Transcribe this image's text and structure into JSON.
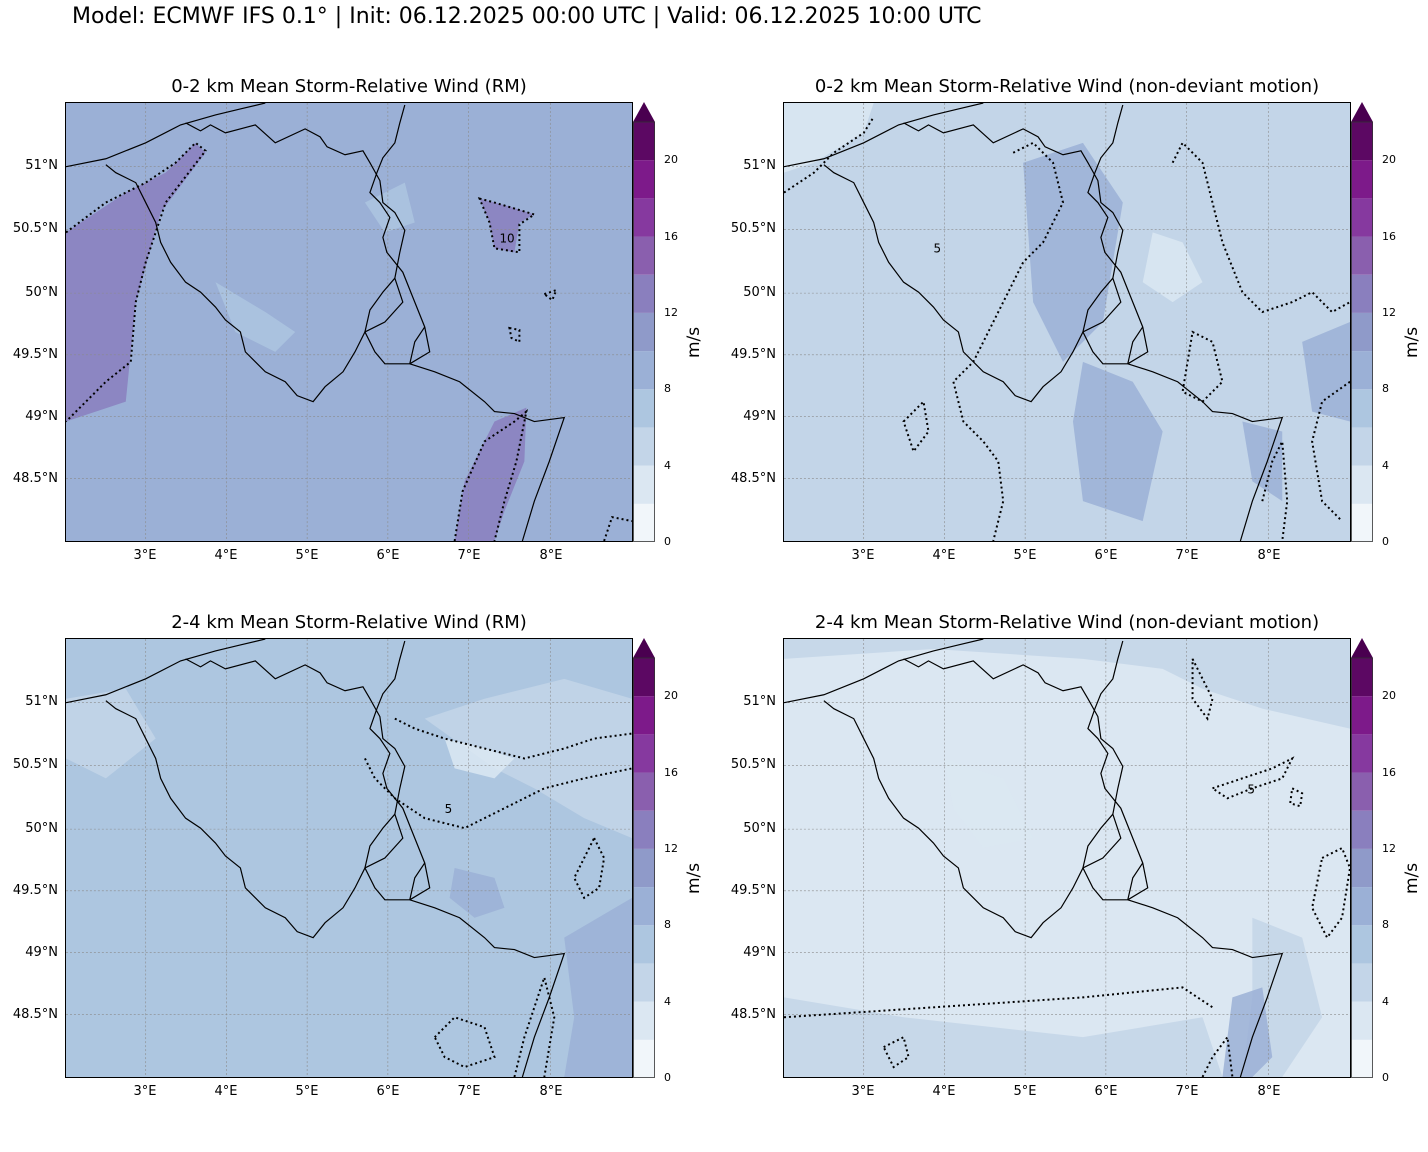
{
  "suptitle": "Model: ECMWF IFS 0.1° | Init: 06.12.2025 00:00 UTC | Valid: 06.12.2025 10:00 UTC",
  "panels": [
    {
      "title": "0-2 km Mean Storm-Relative Wind (RM)",
      "base_color": "#9bb0d6",
      "contour_label": "10",
      "mean_level_ms": 9
    },
    {
      "title": "0-2 km Mean Storm-Relative Wind (non-deviant motion)",
      "base_color": "#c3d5e8",
      "contour_label": "5",
      "mean_level_ms": 6
    },
    {
      "title": "2-4 km Mean Storm-Relative Wind (RM)",
      "base_color": "#adc6e0",
      "contour_label": "5",
      "mean_level_ms": 7
    },
    {
      "title": "2-4 km Mean Storm-Relative Wind (non-deviant motion)",
      "base_color": "#dbe7f2",
      "contour_label": "5",
      "mean_level_ms": 4
    }
  ],
  "axes": {
    "lat_labels": [
      "51°N",
      "50.5°N",
      "50°N",
      "49.5°N",
      "49°N",
      "48.5°N"
    ],
    "lon_labels": [
      "3°E",
      "4°E",
      "5°E",
      "6°E",
      "7°E",
      "8°E"
    ]
  },
  "colorbar": {
    "unit": "m/s",
    "ticks": [
      "0",
      "4",
      "8",
      "12",
      "16",
      "20"
    ],
    "levels": [
      0,
      2,
      4,
      6,
      8,
      10,
      12,
      14,
      16,
      18,
      20,
      22
    ],
    "colors": [
      "#f1f6fa",
      "#dbe7f2",
      "#c3d5e8",
      "#adc6e0",
      "#9bb0d6",
      "#8f9ac9",
      "#8a7fbe",
      "#8a5fae",
      "#86399f",
      "#7d1a8a",
      "#5c0863",
      "#4a0050"
    ],
    "extend": "max"
  }
}
